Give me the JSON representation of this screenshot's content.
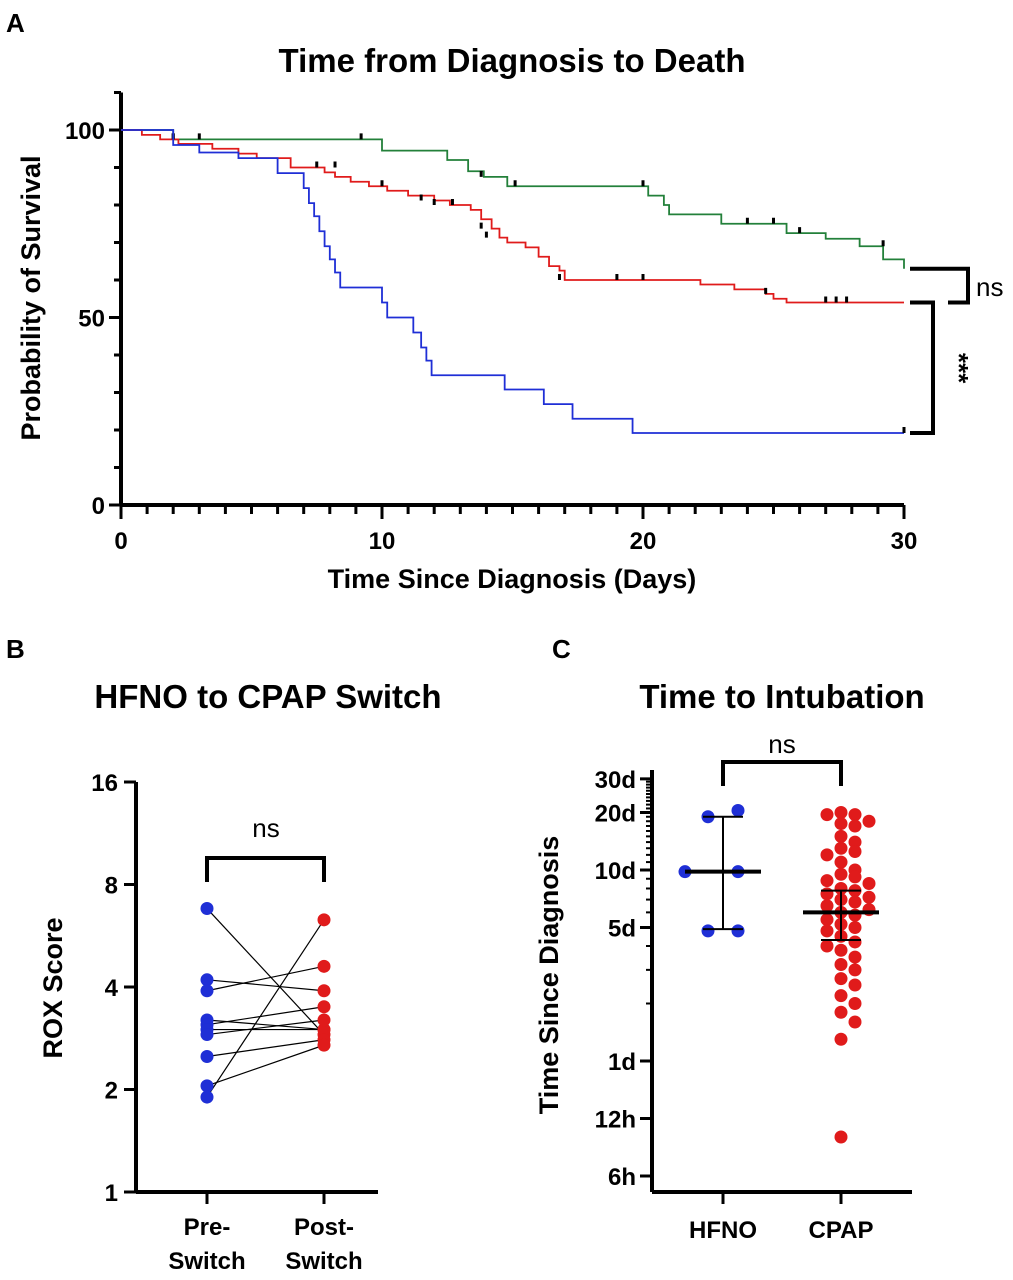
{
  "colors": {
    "green": "#23803a",
    "red": "#e01b1b",
    "blue": "#1f2fd6",
    "black": "#000000"
  },
  "chart_data": [
    {
      "panel": "A",
      "type": "line",
      "subtype": "kaplan-meier step",
      "title": "Time from Diagnosis to Death",
      "xlabel": "Time Since Diagnosis (Days)",
      "ylabel": "Probability of Survival",
      "xlim": [
        0,
        30
      ],
      "ylim": [
        0,
        110
      ],
      "xticks": [
        "0",
        "10",
        "20",
        "30"
      ],
      "yticks": [
        "0",
        "50",
        "100"
      ],
      "series": [
        {
          "color": "green",
          "steps": [
            [
              0,
              100
            ],
            [
              2,
              97.5
            ],
            [
              9.2,
              97.5
            ],
            [
              10,
              94.5
            ],
            [
              11.5,
              94.5
            ],
            [
              12.5,
              92
            ],
            [
              13.3,
              89
            ],
            [
              13.9,
              87.5
            ],
            [
              14.8,
              85
            ],
            [
              20,
              85
            ],
            [
              20.2,
              82.5
            ],
            [
              20.8,
              80
            ],
            [
              21,
              77.5
            ],
            [
              22.5,
              77.5
            ],
            [
              23,
              75
            ],
            [
              25,
              75
            ],
            [
              25.5,
              72.5
            ],
            [
              27,
              71
            ],
            [
              28.3,
              69
            ],
            [
              29.2,
              65.5
            ],
            [
              30,
              63
            ]
          ],
          "censored": [
            [
              2,
              97.5
            ],
            [
              3,
              97.5
            ],
            [
              9.2,
              97.5
            ],
            [
              13.8,
              87.5
            ],
            [
              15.1,
              85
            ],
            [
              20,
              85
            ],
            [
              24,
              75
            ],
            [
              25,
              75
            ],
            [
              26,
              72.5
            ],
            [
              29.2,
              69
            ]
          ]
        },
        {
          "color": "red",
          "steps": [
            [
              0,
              100
            ],
            [
              0.8,
              98.7
            ],
            [
              1.5,
              97.5
            ],
            [
              2.2,
              96.3
            ],
            [
              3.5,
              95
            ],
            [
              4.5,
              93.7
            ],
            [
              5.2,
              92.5
            ],
            [
              6.5,
              90
            ],
            [
              7.6,
              90
            ],
            [
              7.8,
              88.7
            ],
            [
              8.2,
              87.5
            ],
            [
              8.8,
              86.2
            ],
            [
              9.5,
              85
            ],
            [
              10.2,
              83.8
            ],
            [
              11,
              82.5
            ],
            [
              12,
              81.2
            ],
            [
              12.6,
              80
            ],
            [
              13.4,
              78.7
            ],
            [
              13.8,
              76.2
            ],
            [
              14.2,
              73.7
            ],
            [
              14.5,
              71.3
            ],
            [
              14.8,
              70
            ],
            [
              15.5,
              68.7
            ],
            [
              16,
              66.2
            ],
            [
              16.4,
              63.7
            ],
            [
              16.8,
              62.5
            ],
            [
              17,
              60
            ],
            [
              21.9,
              60
            ],
            [
              22.2,
              58.8
            ],
            [
              23.5,
              57.5
            ],
            [
              24.7,
              56.3
            ],
            [
              25,
              55
            ],
            [
              25.5,
              54
            ],
            [
              30,
              54
            ]
          ],
          "censored": [
            [
              2,
              97.5
            ],
            [
              7.5,
              90
            ],
            [
              8.2,
              90
            ],
            [
              10,
              85
            ],
            [
              11.5,
              81.2
            ],
            [
              12,
              80
            ],
            [
              12.7,
              80
            ],
            [
              13.8,
              73.7
            ],
            [
              14,
              71.3
            ],
            [
              16.8,
              60
            ],
            [
              19,
              60
            ],
            [
              20,
              60
            ],
            [
              24.7,
              56.3
            ],
            [
              27,
              54
            ],
            [
              27.4,
              54
            ],
            [
              27.8,
              54
            ]
          ]
        },
        {
          "color": "blue",
          "steps": [
            [
              0,
              100
            ],
            [
              2,
              96
            ],
            [
              3,
              94
            ],
            [
              4.5,
              92.5
            ],
            [
              6,
              88.5
            ],
            [
              7,
              84.5
            ],
            [
              7.2,
              80.5
            ],
            [
              7.4,
              77
            ],
            [
              7.6,
              73
            ],
            [
              7.8,
              69
            ],
            [
              8,
              65.5
            ],
            [
              8.2,
              62
            ],
            [
              8.4,
              58
            ],
            [
              9.7,
              58
            ],
            [
              10,
              54
            ],
            [
              10.2,
              50
            ],
            [
              11,
              50
            ],
            [
              11.2,
              46
            ],
            [
              11.5,
              42
            ],
            [
              11.7,
              38.5
            ],
            [
              11.9,
              34.6
            ],
            [
              14.5,
              34.6
            ],
            [
              14.7,
              30.8
            ],
            [
              15.8,
              30.8
            ],
            [
              16.2,
              26.9
            ],
            [
              17,
              26.9
            ],
            [
              17.3,
              23
            ],
            [
              19,
              23
            ],
            [
              19.6,
              19.2
            ],
            [
              30,
              19.2
            ]
          ],
          "censored": [
            [
              30,
              19.2
            ]
          ]
        }
      ],
      "annotations": [
        {
          "text": "ns",
          "between": [
            "green",
            "red"
          ]
        },
        {
          "text": "***",
          "between": [
            "red",
            "blue"
          ]
        }
      ]
    },
    {
      "panel": "B",
      "type": "scatter",
      "subtype": "paired before-after",
      "title": "HFNO to CPAP Switch",
      "ylabel": "ROX Score",
      "yscale": "log2",
      "ylim": [
        1,
        16
      ],
      "yticks": [
        "1",
        "2",
        "4",
        "8",
        "16"
      ],
      "categories": [
        "Pre-\nSwitch",
        "Post-\nSwitch"
      ],
      "category_labels": [
        [
          "Pre-",
          "Switch"
        ],
        [
          "Post-",
          "Switch"
        ]
      ],
      "pairs": [
        [
          6.8,
          2.9
        ],
        [
          4.2,
          3.9
        ],
        [
          3.9,
          4.6
        ],
        [
          3.2,
          3.0
        ],
        [
          3.1,
          3.5
        ],
        [
          3.0,
          3.0
        ],
        [
          2.9,
          3.2
        ],
        [
          2.5,
          2.8
        ],
        [
          2.05,
          2.7
        ],
        [
          1.9,
          6.3
        ]
      ],
      "pre_color": "blue",
      "post_color": "red",
      "annotation": "ns"
    },
    {
      "panel": "C",
      "type": "scatter",
      "subtype": "dot plot with median and interquartile range",
      "title": "Time to Intubation",
      "ylabel": "Time Since Diagnosis",
      "yscale": "log",
      "y_unit": "days",
      "ylim_days": [
        0.2,
        30
      ],
      "yticks": [
        {
          "label": "6h",
          "days": 0.25
        },
        {
          "label": "12h",
          "days": 0.5
        },
        {
          "label": "1d",
          "days": 1
        },
        {
          "label": "5d",
          "days": 5
        },
        {
          "label": "10d",
          "days": 10
        },
        {
          "label": "20d",
          "days": 20
        },
        {
          "label": "30d",
          "days": 30
        }
      ],
      "categories": [
        "HFNO",
        "CPAP"
      ],
      "series": [
        {
          "name": "HFNO",
          "color": "blue",
          "median": 9.8,
          "q1": 4.9,
          "q3": 19,
          "values": [
            20.5,
            19,
            9.8,
            9.8,
            4.8,
            4.8
          ]
        },
        {
          "name": "CPAP",
          "color": "red",
          "median": 6,
          "q1": 4.3,
          "q3": 7.8,
          "values": [
            20,
            19.5,
            19.5,
            18,
            17.5,
            17,
            15,
            14,
            13,
            12.5,
            12,
            11,
            10,
            9.5,
            9.2,
            8.8,
            8.5,
            8,
            7.8,
            7.5,
            7.2,
            7,
            6.8,
            6.5,
            6.2,
            6,
            5.8,
            5.5,
            5.2,
            5,
            4.8,
            4.5,
            4.2,
            4,
            3.8,
            3.5,
            3.2,
            3,
            2.7,
            2.5,
            2.2,
            2,
            1.8,
            1.6,
            1.3,
            0.4
          ]
        }
      ],
      "annotation": "ns"
    }
  ]
}
